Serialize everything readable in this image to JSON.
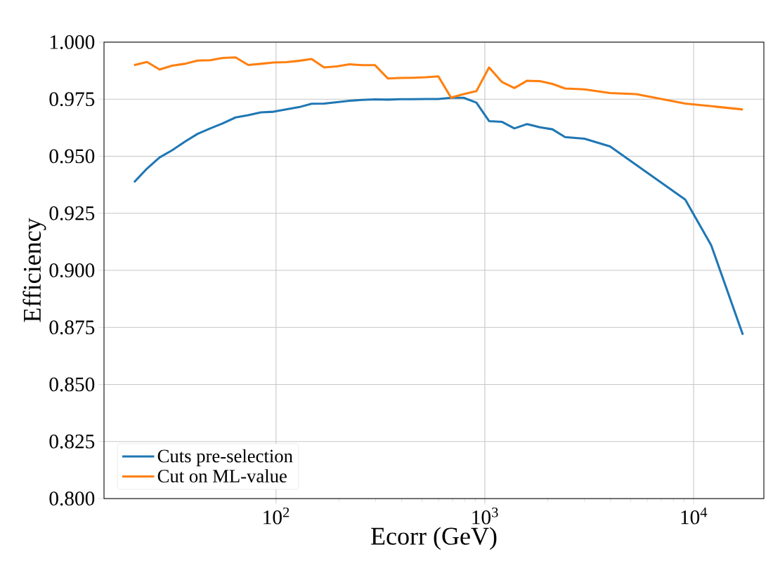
{
  "chart_data": {
    "type": "line",
    "xlabel": "Ecorr (GeV)",
    "ylabel": "Efficiency",
    "log": "x",
    "grid": true,
    "legend": "bottom left",
    "line_style": "solid",
    "xlim": [
      15,
      21700
    ],
    "ylim": [
      0.8,
      1.0
    ],
    "xticks": [
      {
        "value": 100,
        "label": "10$^{2}$"
      },
      {
        "value": 1000,
        "label": "10$^{3}$"
      },
      {
        "value": 10000,
        "label": "10$^{4}$"
      }
    ],
    "yticks": [
      {
        "value": 0.8,
        "label": "0.800"
      },
      {
        "value": 0.825,
        "label": "0.825"
      },
      {
        "value": 0.85,
        "label": "0.850"
      },
      {
        "value": 0.875,
        "label": "0.875"
      },
      {
        "value": 0.9,
        "label": "0.900"
      },
      {
        "value": 0.925,
        "label": "0.925"
      },
      {
        "value": 0.95,
        "label": "0.950"
      },
      {
        "value": 0.975,
        "label": "0.975"
      },
      {
        "value": 1.0,
        "label": "1.000"
      }
    ],
    "series": [
      {
        "name": "Cuts  pre-selection",
        "color": "#1f77b4",
        "x": [
          20.9,
          24.1,
          27.7,
          31.8,
          36.6,
          42.1,
          48.4,
          55.6,
          64.0,
          73.6,
          84.6,
          97.3,
          111.9,
          128.7,
          148,
          170,
          196,
          225,
          259,
          298,
          343,
          394,
          453,
          521,
          599,
          689,
          792,
          911,
          1048,
          1205,
          1386,
          1594,
          1833,
          2108,
          2424,
          3000,
          3981,
          9120,
          12140,
          17220
        ],
        "values": [
          0.9386,
          0.9446,
          0.9495,
          0.9526,
          0.9564,
          0.9598,
          0.9622,
          0.9644,
          0.967,
          0.968,
          0.9692,
          0.9695,
          0.9705,
          0.9715,
          0.973,
          0.9731,
          0.9737,
          0.9743,
          0.9747,
          0.9749,
          0.9748,
          0.975,
          0.975,
          0.9751,
          0.9751,
          0.9756,
          0.9756,
          0.9735,
          0.9654,
          0.9651,
          0.9622,
          0.9641,
          0.9627,
          0.9618,
          0.9584,
          0.9577,
          0.9543,
          0.931,
          0.911,
          0.8718
        ]
      },
      {
        "name": "Cut on ML-value",
        "color": "#ff7f0e",
        "x": [
          20.9,
          24.1,
          27.7,
          31.8,
          36.6,
          42.1,
          48.4,
          55.6,
          64.0,
          73.6,
          84.6,
          97.3,
          111.9,
          128.7,
          148,
          170,
          196,
          225,
          259,
          298,
          343,
          394,
          453,
          521,
          599,
          689,
          792,
          911,
          1048,
          1205,
          1386,
          1594,
          1833,
          2108,
          2424,
          3000,
          3981,
          5297,
          9120,
          17220
        ],
        "values": [
          0.9899,
          0.9913,
          0.988,
          0.9897,
          0.9905,
          0.9919,
          0.9921,
          0.9931,
          0.9933,
          0.99,
          0.9905,
          0.9911,
          0.9912,
          0.9918,
          0.9926,
          0.9889,
          0.9894,
          0.9903,
          0.9899,
          0.9899,
          0.9841,
          0.9843,
          0.9844,
          0.9846,
          0.985,
          0.9757,
          0.9772,
          0.9785,
          0.9889,
          0.9826,
          0.9799,
          0.9831,
          0.9829,
          0.9817,
          0.9797,
          0.9793,
          0.9777,
          0.9772,
          0.9731,
          0.9705
        ]
      }
    ]
  }
}
